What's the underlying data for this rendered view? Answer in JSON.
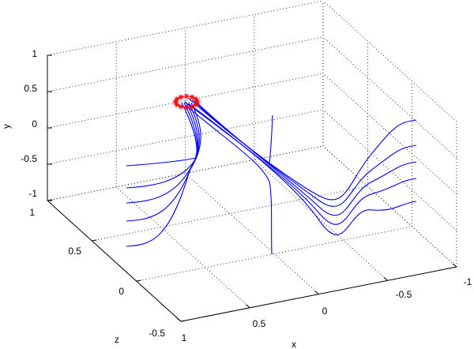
{
  "chart_data": {
    "type": "line3d",
    "title": "",
    "xlabel": "x",
    "ylabel": "y",
    "zlabel": "z",
    "xlim": [
      -1,
      1
    ],
    "ylim": [
      -1,
      1
    ],
    "zlim": [
      -0.5,
      1
    ],
    "x_ticks": [
      "1",
      "0.5",
      "0",
      "-0.5",
      "-1"
    ],
    "y_ticks": [
      "1",
      "0.5",
      "0",
      "-0.5",
      "-1"
    ],
    "z_ticks": [
      "1",
      "0.5",
      "0",
      "-0.5"
    ],
    "grid": true,
    "colors": {
      "trajectories": "#0000ff",
      "markers": "#ff0000",
      "grid": "#000000"
    },
    "marker_symbol": "asterisk",
    "marker_ring_count": 12,
    "trajectory_count": 12
  }
}
